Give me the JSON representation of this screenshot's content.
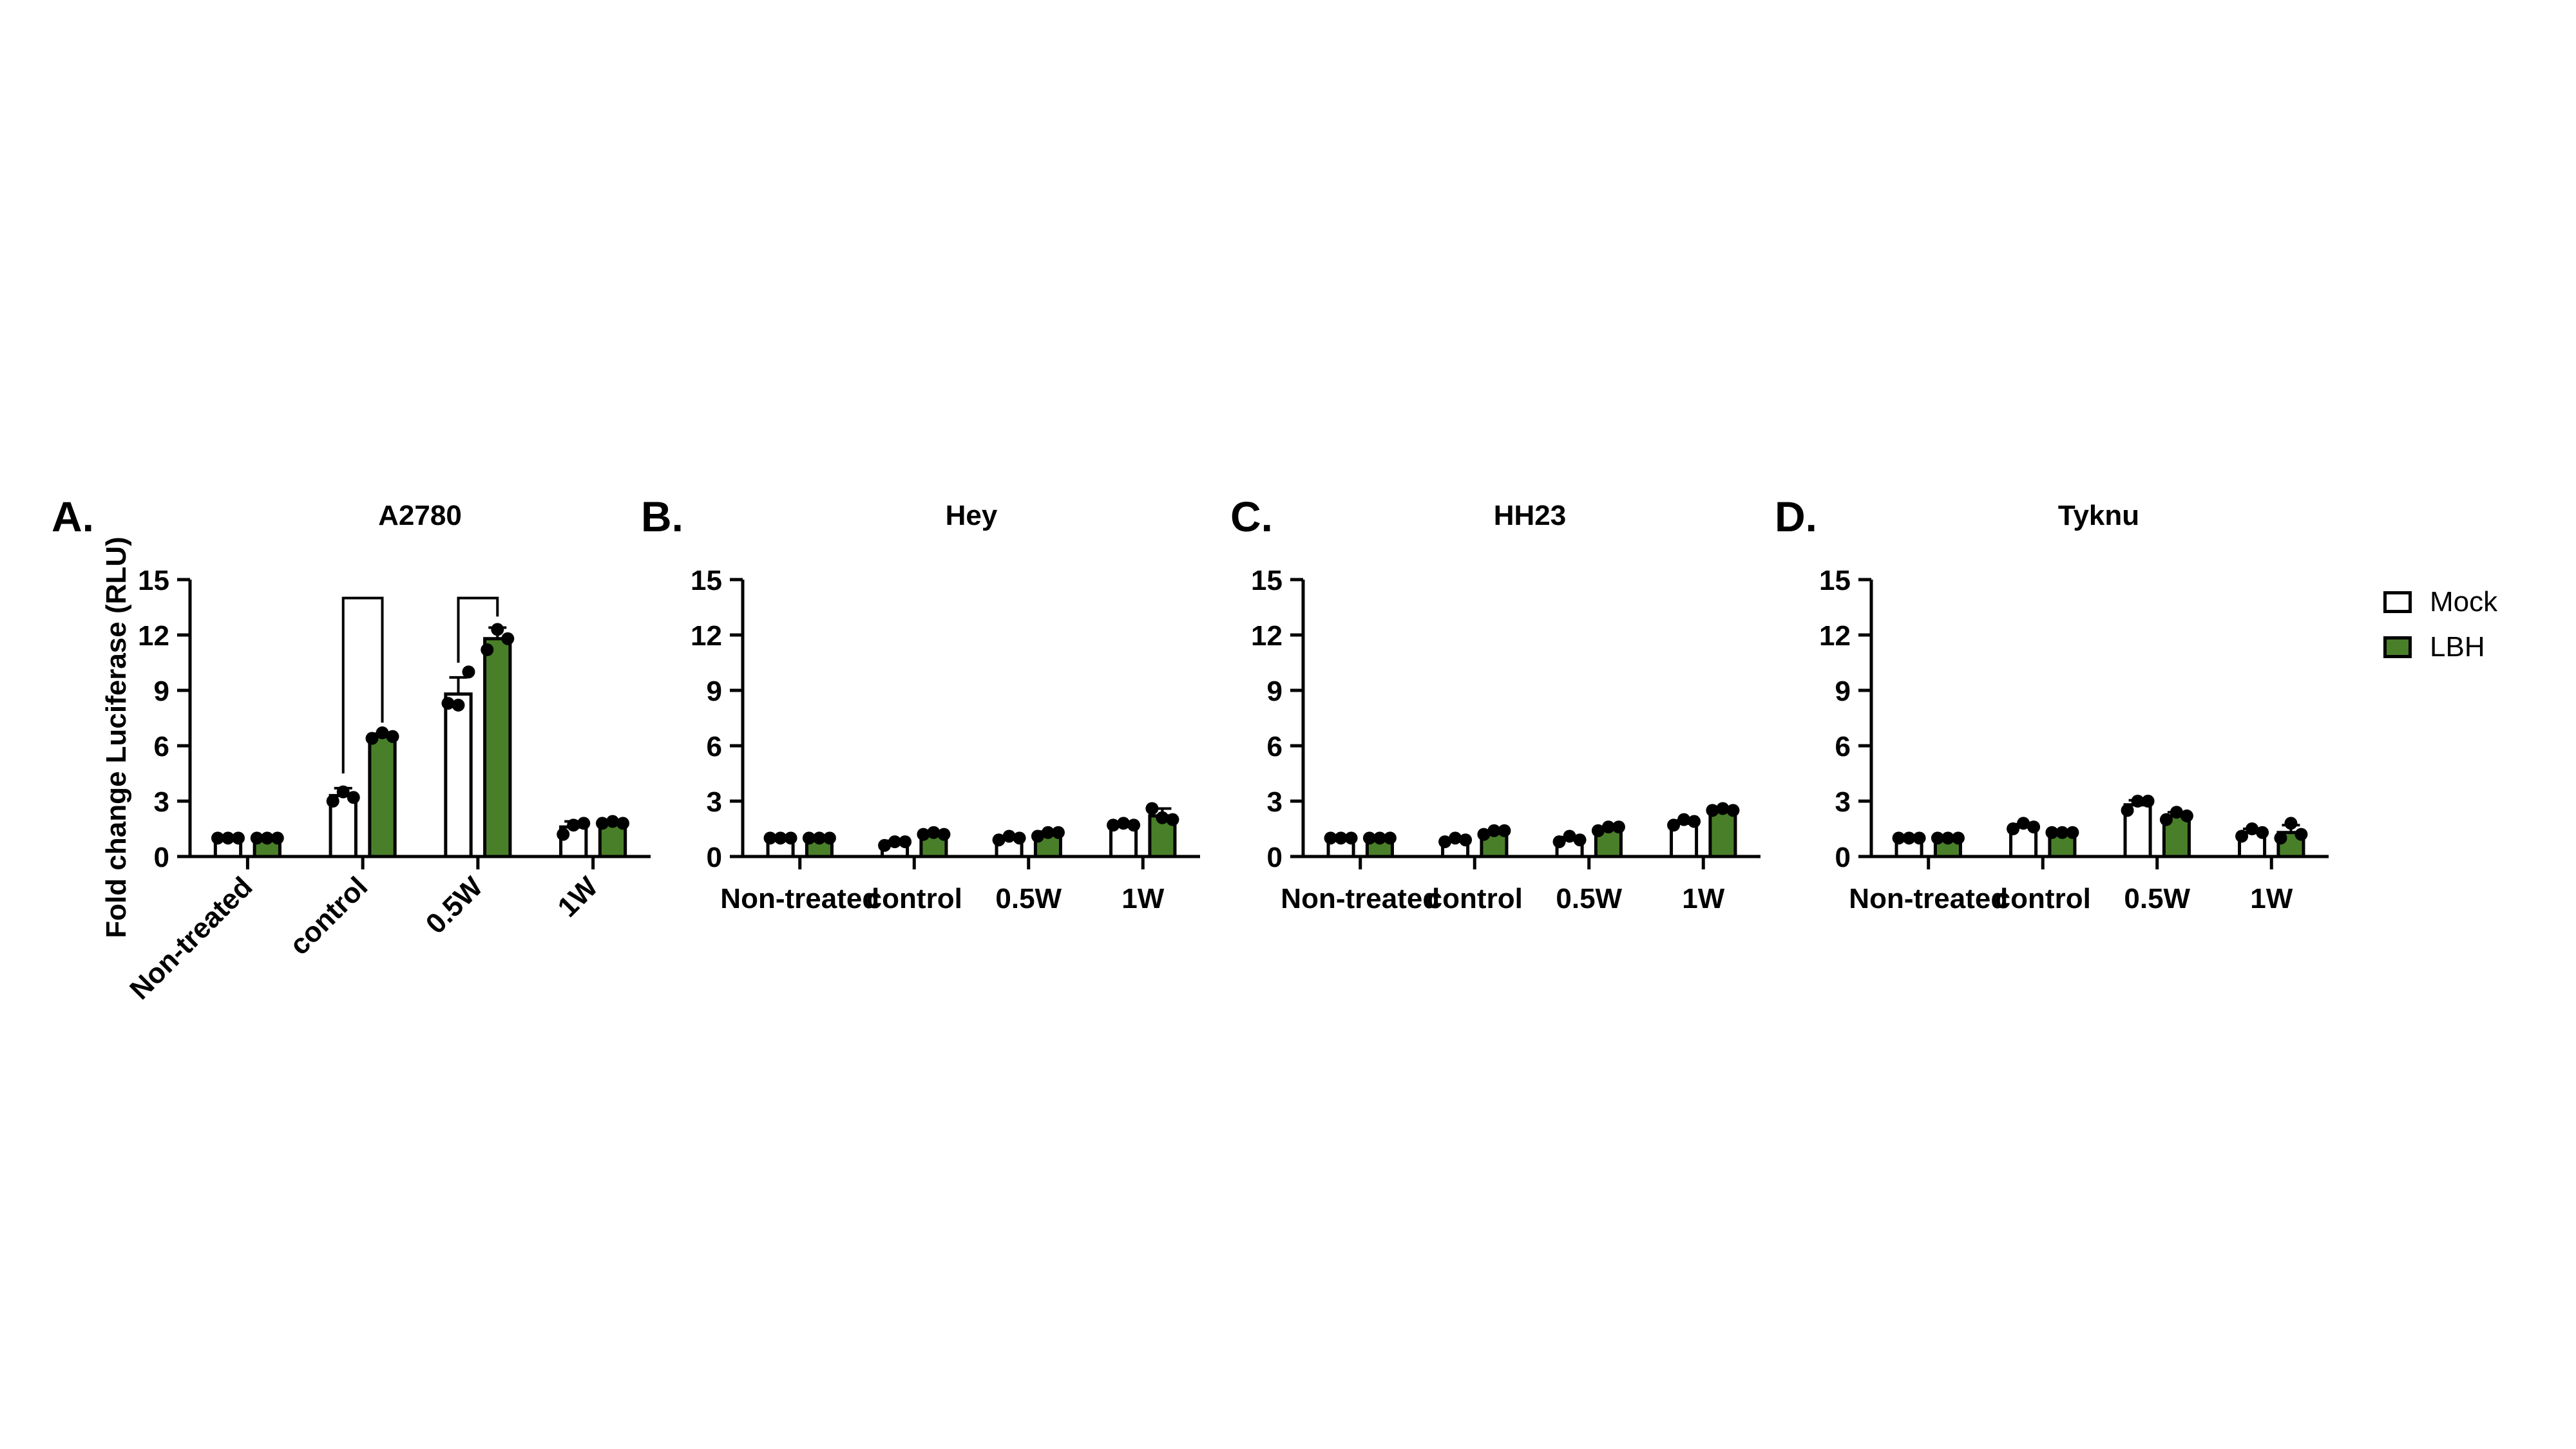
{
  "colors": {
    "mock": "#ffffff",
    "lbh": "#4a7f2a",
    "axis": "#000000",
    "points": "#000000"
  },
  "legend": {
    "mock_label": "Mock",
    "lbh_label": "LBH"
  },
  "chart_data": [
    {
      "type": "bar",
      "panel_label": "A.",
      "title": "A2780",
      "ylabel": "Fold change Luciferase (RLU)",
      "ylim": [
        0,
        15
      ],
      "yticks": [
        0,
        3,
        6,
        9,
        12,
        15
      ],
      "categories": [
        "Non-treated",
        "control",
        "0.5W",
        "1W"
      ],
      "x_label_rotation": "45deg",
      "series": [
        {
          "name": "Mock",
          "values": [
            1.0,
            3.3,
            8.8,
            1.6
          ],
          "errors": [
            0.1,
            0.4,
            0.9,
            0.3
          ],
          "points": [
            [
              1.0,
              1.0,
              1.0
            ],
            [
              3.0,
              3.5,
              3.2
            ],
            [
              8.3,
              8.2,
              10.0
            ],
            [
              1.2,
              1.7,
              1.8
            ]
          ]
        },
        {
          "name": "LBH",
          "values": [
            1.0,
            6.5,
            11.8,
            1.8
          ],
          "errors": [
            0.05,
            0.15,
            0.6,
            0.1
          ],
          "points": [
            [
              1.0,
              1.0,
              1.0
            ],
            [
              6.4,
              6.7,
              6.5
            ],
            [
              11.2,
              12.3,
              11.8
            ],
            [
              1.8,
              1.9,
              1.8
            ]
          ]
        }
      ],
      "significance_brackets": [
        {
          "category": "control",
          "y_top": 14.0
        },
        {
          "category": "0.5W",
          "y_top": 14.0
        }
      ]
    },
    {
      "type": "bar",
      "panel_label": "B.",
      "title": "Hey",
      "ylim": [
        0,
        15
      ],
      "yticks": [
        0,
        3,
        6,
        9,
        12,
        15
      ],
      "categories": [
        "Non-treated",
        "control",
        "0.5W",
        "1W"
      ],
      "series": [
        {
          "name": "Mock",
          "values": [
            1.0,
            0.7,
            1.0,
            1.7
          ],
          "errors": [
            0.05,
            0.15,
            0.1,
            0.1
          ],
          "points": [
            [
              1.0,
              1.0,
              1.0
            ],
            [
              0.6,
              0.8,
              0.8
            ],
            [
              0.9,
              1.1,
              1.0
            ],
            [
              1.7,
              1.8,
              1.7
            ]
          ]
        },
        {
          "name": "LBH",
          "values": [
            1.0,
            1.2,
            1.2,
            2.2
          ],
          "errors": [
            0.05,
            0.1,
            0.15,
            0.4
          ],
          "points": [
            [
              1.0,
              1.0,
              1.0
            ],
            [
              1.2,
              1.3,
              1.2
            ],
            [
              1.1,
              1.3,
              1.3
            ],
            [
              2.6,
              2.1,
              2.0
            ]
          ]
        }
      ]
    },
    {
      "type": "bar",
      "panel_label": "C.",
      "title": "HH23",
      "ylim": [
        0,
        15
      ],
      "yticks": [
        0,
        3,
        6,
        9,
        12,
        15
      ],
      "categories": [
        "Non-treated",
        "control",
        "0.5W",
        "1W"
      ],
      "series": [
        {
          "name": "Mock",
          "values": [
            1.0,
            0.9,
            0.9,
            1.8
          ],
          "errors": [
            0.05,
            0.1,
            0.15,
            0.15
          ],
          "points": [
            [
              1.0,
              1.0,
              1.0
            ],
            [
              0.8,
              1.0,
              0.9
            ],
            [
              0.8,
              1.1,
              0.9
            ],
            [
              1.7,
              2.0,
              1.9
            ]
          ]
        },
        {
          "name": "LBH",
          "values": [
            1.0,
            1.3,
            1.5,
            2.5
          ],
          "errors": [
            0.05,
            0.1,
            0.1,
            0.1
          ],
          "points": [
            [
              1.0,
              1.0,
              1.0
            ],
            [
              1.2,
              1.4,
              1.4
            ],
            [
              1.4,
              1.6,
              1.6
            ],
            [
              2.5,
              2.6,
              2.5
            ]
          ]
        }
      ]
    },
    {
      "type": "bar",
      "panel_label": "D.",
      "title": "Tyknu",
      "ylim": [
        0,
        15
      ],
      "yticks": [
        0,
        3,
        6,
        9,
        12,
        15
      ],
      "categories": [
        "Non-treated",
        "control",
        "0.5W",
        "1W"
      ],
      "series": [
        {
          "name": "Mock",
          "values": [
            1.0,
            1.6,
            2.8,
            1.3
          ],
          "errors": [
            0.05,
            0.15,
            0.25,
            0.2
          ],
          "points": [
            [
              1.0,
              1.0,
              1.0
            ],
            [
              1.5,
              1.8,
              1.6
            ],
            [
              2.5,
              3.0,
              3.0
            ],
            [
              1.1,
              1.5,
              1.3
            ]
          ]
        },
        {
          "name": "LBH",
          "values": [
            1.0,
            1.3,
            2.2,
            1.3
          ],
          "errors": [
            0.05,
            0.05,
            0.2,
            0.4
          ],
          "points": [
            [
              1.0,
              1.0,
              1.0
            ],
            [
              1.3,
              1.3,
              1.3
            ],
            [
              2.0,
              2.4,
              2.2
            ],
            [
              1.0,
              1.8,
              1.2
            ]
          ]
        }
      ]
    }
  ]
}
